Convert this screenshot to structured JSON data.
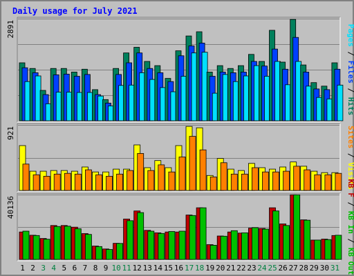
{
  "chart_data": {
    "type": "bar",
    "title": "Daily usage for July 2021",
    "categories": [
      "1",
      "2",
      "3",
      "4",
      "5",
      "6",
      "7",
      "8",
      "9",
      "10",
      "11",
      "12",
      "13",
      "14",
      "15",
      "16",
      "17",
      "18",
      "19",
      "20",
      "21",
      "22",
      "23",
      "24",
      "25",
      "26",
      "27",
      "28",
      "29",
      "30",
      "31"
    ],
    "weekend_days": [
      "3",
      "4",
      "10",
      "11",
      "17",
      "18",
      "24",
      "25",
      "31"
    ],
    "colors": {
      "title": "#0000ff",
      "hits": "#00805c",
      "files": "#0040ff",
      "pages": "#00e0ff",
      "visits": "#ffff00",
      "sites": "#ff8000",
      "kb_in": "#00c000",
      "kb_out": "#c00000",
      "weekday_label": "#000000",
      "weekend_label": "#008040",
      "gridline": "#808080",
      "plot_bg": "#c0c0c0"
    },
    "panels": [
      {
        "id": "requests",
        "ymax_label": "2891",
        "ylim": [
          0,
          2891
        ],
        "axis_label_parts": [
          {
            "text": "Pages",
            "color": "#00e0ff"
          },
          {
            "text": " / ",
            "color": "#000000"
          },
          {
            "text": "Files",
            "color": "#0040ff"
          },
          {
            "text": " / ",
            "color": "#000000"
          },
          {
            "text": "Hits",
            "color": "#00805c"
          }
        ],
        "series": [
          {
            "name": "Hits",
            "color": "#00805c",
            "values": [
              1640,
              1480,
              860,
              1480,
              1480,
              1380,
              1460,
              880,
              600,
              1480,
              1920,
              2080,
              1680,
              1560,
              1200,
              1980,
              2400,
              2520,
              1380,
              1560,
              1480,
              1560,
              1880,
              1680,
              2560,
              1660,
              2870,
              1580,
              1080,
              980,
              1640
            ]
          },
          {
            "name": "Files",
            "color": "#0040ff",
            "values": [
              1500,
              1360,
              740,
              1300,
              1320,
              1260,
              1310,
              740,
              500,
              1310,
              1640,
              1920,
              1480,
              1360,
              1110,
              1840,
              2120,
              2200,
              1260,
              1380,
              1360,
              1380,
              1680,
              1550,
              2030,
              1460,
              2360,
              1380,
              900,
              880,
              1460
            ]
          },
          {
            "name": "Pages",
            "color": "#00e0ff",
            "values": [
              1110,
              1270,
              480,
              810,
              810,
              800,
              800,
              700,
              420,
              1000,
              1010,
              1360,
              1170,
              940,
              820,
              1260,
              1920,
              1940,
              780,
              1310,
              1110,
              1270,
              1560,
              1260,
              1680,
              1020,
              1680,
              980,
              660,
              620,
              1010
            ]
          }
        ]
      },
      {
        "id": "visitors",
        "ymax_label": "921",
        "ylim": [
          0,
          921
        ],
        "axis_label_parts": [
          {
            "text": "Sites",
            "color": "#ff8000"
          },
          {
            "text": " / ",
            "color": "#000000"
          },
          {
            "text": "Visits",
            "color": "#ffff00"
          }
        ],
        "series": [
          {
            "name": "Visits",
            "color": "#ffff00",
            "values": [
              630,
              270,
              270,
              280,
              280,
              270,
              330,
              260,
              260,
              300,
              300,
              640,
              320,
              420,
              320,
              630,
              900,
              880,
              210,
              450,
              300,
              280,
              380,
              320,
              300,
              330,
              400,
              340,
              270,
              250,
              250
            ]
          },
          {
            "name": "Sites",
            "color": "#ff8000",
            "values": [
              370,
              220,
              200,
              230,
              240,
              230,
              290,
              220,
              200,
              230,
              280,
              520,
              280,
              360,
              260,
              470,
              760,
              570,
              190,
              390,
              230,
              230,
              320,
              260,
              260,
              270,
              340,
              290,
              220,
              220,
              240
            ]
          }
        ]
      },
      {
        "id": "traffic",
        "ymax_label": "40136",
        "ylim": [
          0,
          40136
        ],
        "axis_label_parts": [
          {
            "text": "KB F",
            "color": "#c00000"
          },
          {
            "text": " / ",
            "color": "#000000"
          },
          {
            "text": "KB In",
            "color": "#00c000"
          },
          {
            "text": " / ",
            "color": "#000000"
          },
          {
            "text": "KB Out",
            "color": "#00c000"
          }
        ],
        "series": [
          {
            "name": "KB F",
            "color": "#c00000",
            "values": [
              17000,
              15000,
              13000,
              21000,
              21000,
              20000,
              16000,
              8300,
              6500,
              10000,
              25000,
              30000,
              18000,
              16500,
              17000,
              17000,
              27500,
              32000,
              9200,
              14500,
              17000,
              16300,
              19400,
              19200,
              32000,
              22000,
              40000,
              24500,
              12000,
              12600,
              14800
            ]
          },
          {
            "name": "KB In",
            "color": "#00c000",
            "values": [
              17500,
              14800,
              12500,
              20400,
              20600,
              19000,
              15500,
              8000,
              6200,
              9900,
              24000,
              29000,
              17500,
              16100,
              17300,
              17500,
              27200,
              32000,
              8800,
              14400,
              17800,
              16500,
              19700,
              18800,
              30000,
              21000,
              40000,
              24300,
              12000,
              12300,
              15000
            ]
          }
        ]
      }
    ]
  }
}
